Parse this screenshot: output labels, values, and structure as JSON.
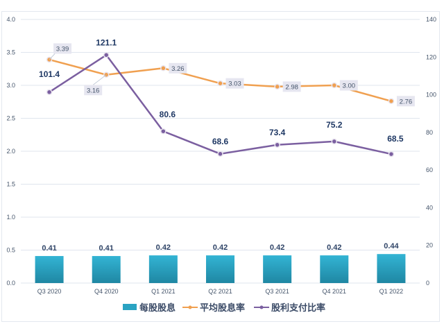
{
  "chart_data": {
    "type": "bar",
    "title": "",
    "categories": [
      "Q3 2020",
      "Q4 2020",
      "Q1 2021",
      "Q2 2021",
      "Q3 2021",
      "Q4 2021",
      "Q1 2022"
    ],
    "series": [
      {
        "name": "每股股息",
        "type": "bar",
        "axis": "left",
        "color": "#2aa3c2",
        "values": [
          0.41,
          0.41,
          0.42,
          0.42,
          0.42,
          0.42,
          0.44
        ],
        "labels": [
          "0.41",
          "0.41",
          "0.42",
          "0.42",
          "0.42",
          "0.42",
          "0.44"
        ]
      },
      {
        "name": "平均股息率",
        "type": "line",
        "axis": "left",
        "color": "#f0a050",
        "values": [
          3.39,
          3.16,
          3.26,
          3.03,
          2.98,
          3.0,
          2.76
        ],
        "labels": [
          "3.39",
          "3.16",
          "3.26",
          "3.03",
          "2.98",
          "3.00",
          "2.76"
        ]
      },
      {
        "name": "股利支付比率",
        "type": "line",
        "axis": "right",
        "color": "#7b5fa0",
        "values": [
          101.4,
          121.1,
          80.6,
          68.6,
          73.4,
          75.2,
          68.5
        ],
        "labels": [
          "101.4",
          "121.1",
          "80.6",
          "68.6",
          "73.4",
          "75.2",
          "68.5"
        ]
      }
    ],
    "y_left": {
      "min": 0,
      "max": 4.0,
      "ticks": [
        "0.0",
        "0.5",
        "1.0",
        "1.5",
        "2.0",
        "2.5",
        "3.0",
        "3.5",
        "4.0"
      ]
    },
    "y_right": {
      "min": 0,
      "max": 140,
      "ticks": [
        "0",
        "20",
        "40",
        "60",
        "80",
        "100",
        "120",
        "140"
      ]
    },
    "xlabel": "",
    "ylabel": "",
    "grid": true,
    "legend": {
      "position": "bottom"
    }
  }
}
